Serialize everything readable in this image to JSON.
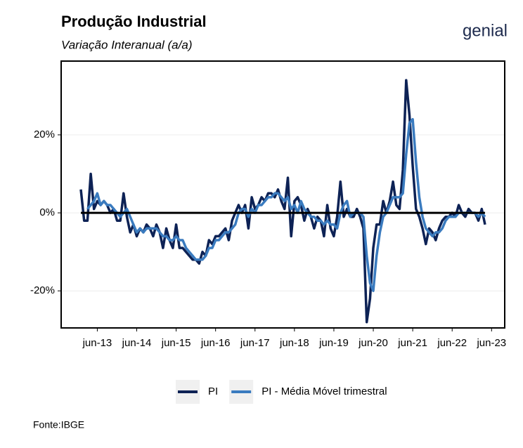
{
  "chart_data": {
    "type": "line",
    "title": "Produção Industrial",
    "subtitle": "Variação Interanual (a/a)",
    "logo": "genial",
    "source": "Fonte:IBGE",
    "x": [
      "2013-01",
      "2013-02",
      "2013-03",
      "2013-04",
      "2013-05",
      "2013-06",
      "2013-07",
      "2013-08",
      "2013-09",
      "2013-10",
      "2013-11",
      "2013-12",
      "2014-01",
      "2014-02",
      "2014-03",
      "2014-04",
      "2014-05",
      "2014-06",
      "2014-07",
      "2014-08",
      "2014-09",
      "2014-10",
      "2014-11",
      "2014-12",
      "2015-01",
      "2015-02",
      "2015-03",
      "2015-04",
      "2015-05",
      "2015-06",
      "2015-07",
      "2015-08",
      "2015-09",
      "2015-10",
      "2015-11",
      "2015-12",
      "2016-01",
      "2016-02",
      "2016-03",
      "2016-04",
      "2016-05",
      "2016-06",
      "2016-07",
      "2016-08",
      "2016-09",
      "2016-10",
      "2016-11",
      "2016-12",
      "2017-01",
      "2017-02",
      "2017-03",
      "2017-04",
      "2017-05",
      "2017-06",
      "2017-07",
      "2017-08",
      "2017-09",
      "2017-10",
      "2017-11",
      "2017-12",
      "2018-01",
      "2018-02",
      "2018-03",
      "2018-04",
      "2018-05",
      "2018-06",
      "2018-07",
      "2018-08",
      "2018-09",
      "2018-10",
      "2018-11",
      "2018-12",
      "2019-01",
      "2019-02",
      "2019-03",
      "2019-04",
      "2019-05",
      "2019-06",
      "2019-07",
      "2019-08",
      "2019-09",
      "2019-10",
      "2019-11",
      "2019-12",
      "2020-01",
      "2020-02",
      "2020-03",
      "2020-04",
      "2020-05",
      "2020-06",
      "2020-07",
      "2020-08",
      "2020-09",
      "2020-10",
      "2020-11",
      "2020-12",
      "2021-01",
      "2021-02",
      "2021-03",
      "2021-04",
      "2021-05",
      "2021-06",
      "2021-07",
      "2021-08",
      "2021-09",
      "2021-10",
      "2021-11",
      "2021-12",
      "2022-01",
      "2022-02",
      "2022-03",
      "2022-04",
      "2022-05",
      "2022-06",
      "2022-07",
      "2022-08",
      "2022-09",
      "2022-10",
      "2022-11",
      "2022-12",
      "2023-01",
      "2023-02",
      "2023-03",
      "2023-04"
    ],
    "series": [
      {
        "name": "PI",
        "color": "#0d2255",
        "values": [
          6,
          -2,
          -2,
          10,
          1,
          3,
          2,
          3,
          2,
          0,
          1,
          -2,
          -2,
          5,
          -1,
          -5,
          -3,
          -6,
          -4,
          -5,
          -3,
          -4,
          -6,
          -3,
          -5,
          -9,
          -4,
          -7,
          -9,
          -3,
          -9,
          -9,
          -10,
          -11,
          -12,
          -12,
          -13,
          -10,
          -11,
          -7,
          -8,
          -6,
          -6,
          -5,
          -4,
          -7,
          -2,
          0,
          2,
          0,
          2,
          -4,
          4,
          1,
          2,
          4,
          3,
          5,
          5,
          4,
          6,
          3,
          1,
          9,
          -6,
          3,
          4,
          2,
          -2,
          1,
          -1,
          -4,
          -1,
          -2,
          -6,
          2,
          -4,
          -6,
          -1,
          8,
          -1,
          1,
          -1,
          -1,
          1,
          -1,
          -4,
          -28,
          -22,
          -9,
          -3,
          -3,
          3,
          0,
          3,
          8,
          2,
          1,
          11,
          34,
          25,
          12,
          1,
          -1,
          -4,
          -8,
          -4,
          -5,
          -7,
          -4,
          -2,
          -1,
          -1,
          0,
          -1,
          2,
          0,
          -1,
          1,
          0,
          0,
          -2,
          1,
          -3
        ]
      },
      {
        "name": "PI - Média Móvel trimestral",
        "color": "#3a7bbf",
        "values": [
          null,
          null,
          1,
          2,
          3,
          5,
          2,
          3,
          2,
          2,
          1,
          0,
          -1,
          0,
          1,
          -1,
          -3,
          -5,
          -4,
          -5,
          -4,
          -4,
          -4,
          -4,
          -5,
          -6,
          -6,
          -7,
          -7,
          -6,
          -7,
          -7,
          -9,
          -10,
          -11,
          -12,
          -12,
          -12,
          -11,
          -9,
          -9,
          -7,
          -7,
          -6,
          -5,
          -5,
          -4,
          -3,
          0,
          1,
          1,
          -1,
          1,
          0,
          2,
          2,
          3,
          4,
          4,
          5,
          5,
          4,
          3,
          4,
          1,
          2,
          0,
          3,
          1,
          0,
          -1,
          -1,
          -2,
          -2,
          -3,
          -2,
          -3,
          -3,
          -4,
          0,
          2,
          3,
          -1,
          0,
          0,
          0,
          -1,
          -11,
          -18,
          -20,
          -11,
          -5,
          -1,
          0,
          2,
          4,
          4,
          4,
          5,
          15,
          23,
          24,
          13,
          4,
          -1,
          -4,
          -5,
          -6,
          -5,
          -5,
          -4,
          -2,
          -1,
          -1,
          -1,
          0,
          0,
          0,
          0,
          0,
          0,
          -1,
          0,
          -1
        ]
      }
    ],
    "xlim": [
      "2012-07",
      "2023-10"
    ],
    "xticks": [
      {
        "value": "2013-06",
        "label": "jun-13"
      },
      {
        "value": "2014-06",
        "label": "jun-14"
      },
      {
        "value": "2015-06",
        "label": "jun-15"
      },
      {
        "value": "2016-06",
        "label": "jun-16"
      },
      {
        "value": "2017-06",
        "label": "jun-17"
      },
      {
        "value": "2018-06",
        "label": "jun-18"
      },
      {
        "value": "2019-06",
        "label": "jun-19"
      },
      {
        "value": "2020-06",
        "label": "jun-20"
      },
      {
        "value": "2021-06",
        "label": "jun-21"
      },
      {
        "value": "2022-06",
        "label": "jun-22"
      },
      {
        "value": "2023-06",
        "label": "jun-23"
      }
    ],
    "ylim": [
      -29.5,
      38.9
    ],
    "yticks": [
      {
        "value": -20,
        "label": "-20%"
      },
      {
        "value": 0,
        "label": "0%"
      },
      {
        "value": 20,
        "label": "20%"
      }
    ],
    "hline": 0,
    "grid": true,
    "legend": "bottom"
  }
}
